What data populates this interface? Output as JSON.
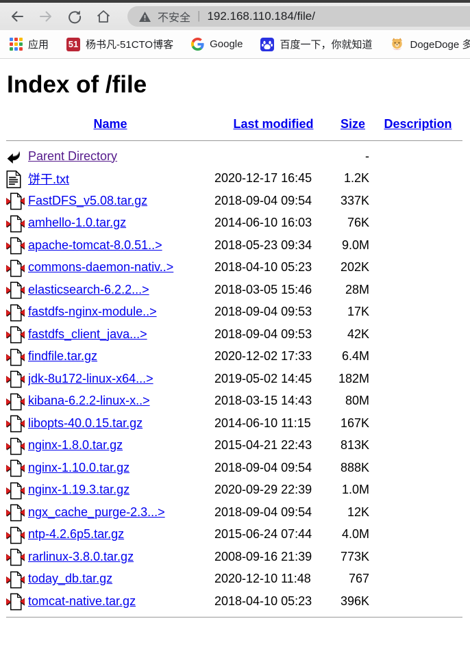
{
  "browser": {
    "nav": {
      "back": "back",
      "forward": "forward",
      "refresh": "refresh",
      "home": "home"
    },
    "address": {
      "security_label": "不安全",
      "separator": "|",
      "url": "192.168.110.184/file/"
    },
    "bookmarks": [
      {
        "label": "应用",
        "icon": "apps-grid-icon"
      },
      {
        "label": "杨书凡-51CTO博客",
        "icon": "51cto-icon",
        "badge": "51"
      },
      {
        "label": "Google",
        "icon": "google-icon"
      },
      {
        "label": "百度一下，你就知道",
        "icon": "baidu-icon"
      },
      {
        "label": "DogeDoge 多",
        "icon": "dogedoge-icon"
      }
    ]
  },
  "page": {
    "title": "Index of /file",
    "columns": {
      "name": "Name",
      "last_modified": "Last modified",
      "size": "Size",
      "description": "Description"
    },
    "rows": [
      {
        "icon": "back-icon",
        "name": "Parent Directory",
        "date": "",
        "size": "-",
        "visited": true
      },
      {
        "icon": "text-file-icon",
        "name": "饼干.txt",
        "date": "2020-12-17 16:45",
        "size": "1.2K",
        "visited": false
      },
      {
        "icon": "compressed-file-icon",
        "name": "FastDFS_v5.08.tar.gz",
        "date": "2018-09-04 09:54",
        "size": "337K",
        "visited": false
      },
      {
        "icon": "compressed-file-icon",
        "name": "amhello-1.0.tar.gz",
        "date": "2014-06-10 16:03",
        "size": "76K",
        "visited": false
      },
      {
        "icon": "compressed-file-icon",
        "name": "apache-tomcat-8.0.51..>",
        "date": "2018-05-23 09:34",
        "size": "9.0M",
        "visited": false
      },
      {
        "icon": "compressed-file-icon",
        "name": "commons-daemon-nativ..>",
        "date": "2018-04-10 05:23",
        "size": "202K",
        "visited": false
      },
      {
        "icon": "compressed-file-icon",
        "name": "elasticsearch-6.2.2...>",
        "date": "2018-03-05 15:46",
        "size": "28M",
        "visited": false
      },
      {
        "icon": "compressed-file-icon",
        "name": "fastdfs-nginx-module..>",
        "date": "2018-09-04 09:53",
        "size": "17K",
        "visited": false
      },
      {
        "icon": "compressed-file-icon",
        "name": "fastdfs_client_java...>",
        "date": "2018-09-04 09:53",
        "size": "42K",
        "visited": false
      },
      {
        "icon": "compressed-file-icon",
        "name": "findfile.tar.gz",
        "date": "2020-12-02 17:33",
        "size": "6.4M",
        "visited": false
      },
      {
        "icon": "compressed-file-icon",
        "name": "jdk-8u172-linux-x64...>",
        "date": "2019-05-02 14:45",
        "size": "182M",
        "visited": false
      },
      {
        "icon": "compressed-file-icon",
        "name": "kibana-6.2.2-linux-x..>",
        "date": "2018-03-15 14:43",
        "size": "80M",
        "visited": false
      },
      {
        "icon": "compressed-file-icon",
        "name": "libopts-40.0.15.tar.gz",
        "date": "2014-06-10 11:15",
        "size": "167K",
        "visited": false
      },
      {
        "icon": "compressed-file-icon",
        "name": "nginx-1.8.0.tar.gz",
        "date": "2015-04-21 22:43",
        "size": "813K",
        "visited": false
      },
      {
        "icon": "compressed-file-icon",
        "name": "nginx-1.10.0.tar.gz",
        "date": "2018-09-04 09:54",
        "size": "888K",
        "visited": false
      },
      {
        "icon": "compressed-file-icon",
        "name": "nginx-1.19.3.tar.gz",
        "date": "2020-09-29 22:39",
        "size": "1.0M",
        "visited": false
      },
      {
        "icon": "compressed-file-icon",
        "name": "ngx_cache_purge-2.3...>",
        "date": "2018-09-04 09:54",
        "size": "12K",
        "visited": false
      },
      {
        "icon": "compressed-file-icon",
        "name": "ntp-4.2.6p5.tar.gz",
        "date": "2015-06-24 07:44",
        "size": "4.0M",
        "visited": false
      },
      {
        "icon": "compressed-file-icon",
        "name": "rarlinux-3.8.0.tar.gz",
        "date": "2008-09-16 21:39",
        "size": "773K",
        "visited": false
      },
      {
        "icon": "compressed-file-icon",
        "name": "today_db.tar.gz",
        "date": "2020-12-10 11:48",
        "size": "767",
        "visited": false
      },
      {
        "icon": "compressed-file-icon",
        "name": "tomcat-native.tar.gz",
        "date": "2018-04-10 05:23",
        "size": "396K",
        "visited": false
      }
    ]
  }
}
